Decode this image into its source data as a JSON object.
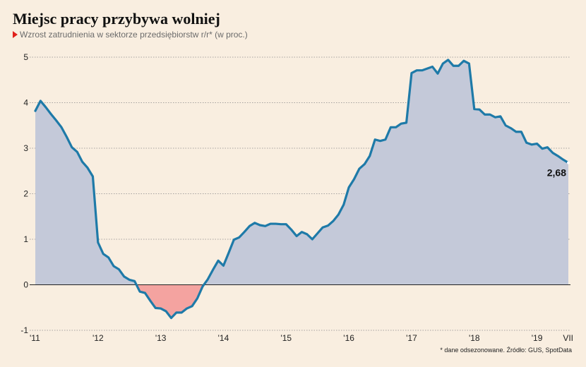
{
  "title": "Miejsc pracy przybywa wolniej",
  "subtitle": "Wzrost zatrudnienia w sektorze przedsiębiorstw r/r* (w proc.)",
  "footnote": "* dane odsezonowane. Źródło: GUS, SpotData",
  "colors": {
    "line": "#1e7aa8",
    "area_positive": "#c4c9d9",
    "area_negative": "#f4a3a0",
    "accent": "#e0201b"
  },
  "chart_data": {
    "type": "area",
    "title": "Miejsc pracy przybywa wolniej",
    "subtitle": "Wzrost zatrudnienia w sektorze przedsiębiorstw r/r* (w proc.)",
    "xlabel": "",
    "ylabel": "",
    "ylim": [
      -1,
      5
    ],
    "y_ticks": [
      "5",
      "4",
      "3",
      "2",
      "1",
      "0",
      "-1"
    ],
    "y_tick_values": [
      5,
      4,
      3,
      2,
      1,
      0,
      -1
    ],
    "x_ticks": [
      "'11",
      "'12",
      "'13",
      "'14",
      "'15",
      "'16",
      "'17",
      "'18",
      "'19",
      "VII"
    ],
    "x_tick_positions": [
      2011.0,
      2012.0,
      2013.0,
      2014.0,
      2015.0,
      2016.0,
      2017.0,
      2018.0,
      2019.0,
      2019.5
    ],
    "grid": "horizontal",
    "end_label": "2,68",
    "series": [
      {
        "x": [
          2011.0,
          2011.083,
          2011.167,
          2011.25,
          2011.333,
          2011.417,
          2011.5,
          2011.583,
          2011.667,
          2011.75,
          2011.833,
          2011.917,
          2012.0,
          2012.083,
          2012.167,
          2012.25,
          2012.333,
          2012.417,
          2012.5,
          2012.583,
          2012.667,
          2012.75,
          2012.833,
          2012.917,
          2013.0,
          2013.083,
          2013.167,
          2013.25,
          2013.333,
          2013.417,
          2013.5,
          2013.583,
          2013.667,
          2013.75,
          2013.833,
          2013.917,
          2014.0,
          2014.083,
          2014.167,
          2014.25,
          2014.333,
          2014.417,
          2014.5,
          2014.583,
          2014.667,
          2014.75,
          2014.833,
          2014.917,
          2015.0,
          2015.083,
          2015.167,
          2015.25,
          2015.333,
          2015.417,
          2015.5,
          2015.583,
          2015.667,
          2015.75,
          2015.833,
          2015.917,
          2016.0,
          2016.083,
          2016.167,
          2016.25,
          2016.333,
          2016.417,
          2016.5,
          2016.583,
          2016.667,
          2016.75,
          2016.833,
          2016.917,
          2017.0,
          2017.083,
          2017.167,
          2017.25,
          2017.333,
          2017.417,
          2017.5,
          2017.583,
          2017.667,
          2017.75,
          2017.833,
          2017.917,
          2018.0,
          2018.083,
          2018.167,
          2018.25,
          2018.333,
          2018.417,
          2018.5,
          2018.583,
          2018.667,
          2018.75,
          2018.833,
          2018.917,
          2019.0,
          2019.083,
          2019.167,
          2019.25,
          2019.333,
          2019.417,
          2019.5
        ],
        "values": [
          3.82,
          4.04,
          3.9,
          3.75,
          3.61,
          3.46,
          3.25,
          3.02,
          2.92,
          2.7,
          2.57,
          2.38,
          0.93,
          0.68,
          0.6,
          0.41,
          0.34,
          0.18,
          0.11,
          0.08,
          -0.15,
          -0.18,
          -0.35,
          -0.51,
          -0.52,
          -0.58,
          -0.73,
          -0.61,
          -0.61,
          -0.52,
          -0.47,
          -0.3,
          -0.04,
          0.12,
          0.33,
          0.53,
          0.42,
          0.7,
          0.99,
          1.04,
          1.16,
          1.29,
          1.36,
          1.31,
          1.29,
          1.34,
          1.34,
          1.33,
          1.33,
          1.21,
          1.07,
          1.16,
          1.11,
          1.0,
          1.13,
          1.26,
          1.3,
          1.4,
          1.54,
          1.76,
          2.14,
          2.32,
          2.55,
          2.65,
          2.83,
          3.19,
          3.16,
          3.19,
          3.46,
          3.46,
          3.54,
          3.56,
          4.65,
          4.71,
          4.71,
          4.75,
          4.79,
          4.64,
          4.86,
          4.94,
          4.81,
          4.81,
          4.92,
          4.86,
          3.86,
          3.85,
          3.74,
          3.74,
          3.68,
          3.7,
          3.5,
          3.44,
          3.36,
          3.36,
          3.12,
          3.08,
          3.1,
          2.99,
          3.02,
          2.9,
          2.83,
          2.75,
          2.68
        ]
      }
    ]
  }
}
